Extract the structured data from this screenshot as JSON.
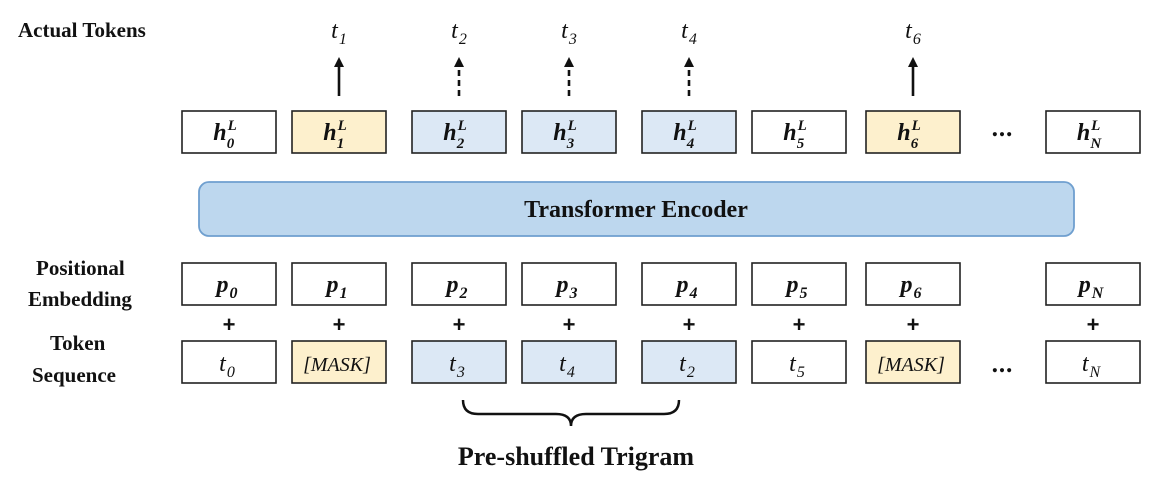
{
  "labels": {
    "actual_tokens": "Actual Tokens",
    "positional_embedding_line1": "Positional",
    "positional_embedding_line2": "Embedding",
    "token_sequence_line1": "Token",
    "token_sequence_line2": "Sequence",
    "encoder": "Transformer Encoder",
    "brace_label": "Pre-shuffled Trigram",
    "plus": "+",
    "ellipsis": "…"
  },
  "colors": {
    "mask": "#fdf0cd",
    "shuffled": "#dce8f5",
    "plain": "#ffffff",
    "encoder_fill": "#bdd7ee",
    "encoder_stroke": "#6f9fcf"
  },
  "actual_tokens": [
    {
      "base": "t",
      "sub": "1",
      "arrow": "solid"
    },
    {
      "base": "t",
      "sub": "2",
      "arrow": "dashed"
    },
    {
      "base": "t",
      "sub": "3",
      "arrow": "dashed"
    },
    {
      "base": "t",
      "sub": "4",
      "arrow": "dashed"
    },
    {
      "base": "t",
      "sub": "6",
      "arrow": "solid"
    }
  ],
  "hidden_states": [
    {
      "base": "h",
      "sup": "L",
      "sub": "0",
      "style": "plain"
    },
    {
      "base": "h",
      "sup": "L",
      "sub": "1",
      "style": "mask"
    },
    {
      "base": "h",
      "sup": "L",
      "sub": "2",
      "style": "shuffled"
    },
    {
      "base": "h",
      "sup": "L",
      "sub": "3",
      "style": "shuffled"
    },
    {
      "base": "h",
      "sup": "L",
      "sub": "4",
      "style": "shuffled"
    },
    {
      "base": "h",
      "sup": "L",
      "sub": "5",
      "style": "plain"
    },
    {
      "base": "h",
      "sup": "L",
      "sub": "6",
      "style": "mask"
    },
    {
      "base": "h",
      "sup": "L",
      "sub": "N",
      "style": "plain"
    }
  ],
  "positional": [
    {
      "base": "p",
      "sub": "0"
    },
    {
      "base": "p",
      "sub": "1"
    },
    {
      "base": "p",
      "sub": "2"
    },
    {
      "base": "p",
      "sub": "3"
    },
    {
      "base": "p",
      "sub": "4"
    },
    {
      "base": "p",
      "sub": "5"
    },
    {
      "base": "p",
      "sub": "6"
    },
    {
      "base": "p",
      "sub": "N"
    }
  ],
  "tokens": [
    {
      "base": "t",
      "sub": "0",
      "style": "plain"
    },
    {
      "text": "[MASK]",
      "style": "mask"
    },
    {
      "base": "t",
      "sub": "3",
      "style": "shuffled"
    },
    {
      "base": "t",
      "sub": "4",
      "style": "shuffled"
    },
    {
      "base": "t",
      "sub": "2",
      "style": "shuffled"
    },
    {
      "base": "t",
      "sub": "5",
      "style": "plain"
    },
    {
      "text": "[MASK]",
      "style": "mask"
    },
    {
      "base": "t",
      "sub": "N",
      "style": "plain"
    }
  ]
}
